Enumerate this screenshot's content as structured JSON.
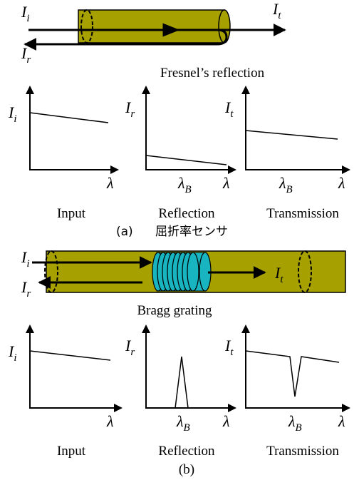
{
  "panel_a": {
    "fiber": {
      "input": {
        "base": "I",
        "sub": "i"
      },
      "transmitted": {
        "base": "I",
        "sub": "t"
      },
      "reflected": {
        "base": "I",
        "sub": "r"
      },
      "caption": "Fresnel’s reflection"
    },
    "plots": [
      {
        "y_label": {
          "base": "I",
          "sub": "i"
        },
        "x_label": "λ",
        "name": "Input"
      },
      {
        "y_label": {
          "base": "I",
          "sub": "r"
        },
        "x_label": "λ",
        "marker": {
          "base": "λ",
          "sub": "B"
        },
        "name": "Reflection"
      },
      {
        "y_label": {
          "base": "I",
          "sub": "t"
        },
        "x_label": "λ",
        "marker": {
          "base": "λ",
          "sub": "B"
        },
        "name": "Transmission"
      }
    ],
    "label": "(a)",
    "title": "屈折率センサ"
  },
  "panel_b": {
    "fiber": {
      "input": {
        "base": "I",
        "sub": "i"
      },
      "transmitted": {
        "base": "I",
        "sub": "t"
      },
      "reflected": {
        "base": "I",
        "sub": "r"
      },
      "caption": "Bragg grating"
    },
    "plots": [
      {
        "y_label": {
          "base": "I",
          "sub": "i"
        },
        "x_label": "λ",
        "name": "Input"
      },
      {
        "y_label": {
          "base": "I",
          "sub": "r"
        },
        "x_label": "λ",
        "marker": {
          "base": "λ",
          "sub": "B"
        },
        "name": "Reflection"
      },
      {
        "y_label": {
          "base": "I",
          "sub": "t"
        },
        "x_label": "λ",
        "marker": {
          "base": "λ",
          "sub": "B"
        },
        "name": "Transmission"
      }
    ],
    "label": "(b)"
  }
}
